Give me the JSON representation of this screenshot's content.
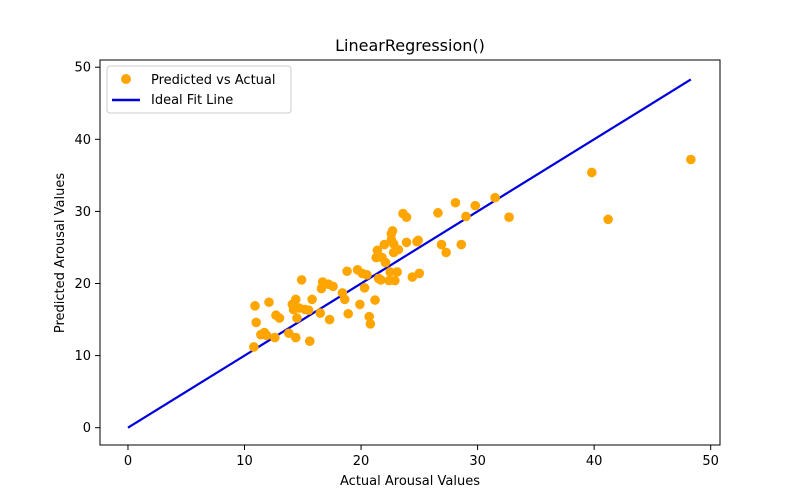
{
  "chart_data": {
    "type": "scatter",
    "title": "LinearRegression()",
    "xlabel": "Actual Arousal Values",
    "ylabel": "Predicted Arousal Values",
    "xlim": [
      -2.4,
      50.8
    ],
    "ylim": [
      -2.4,
      51.0
    ],
    "xticks": [
      0,
      10,
      20,
      30,
      40,
      50
    ],
    "yticks": [
      0,
      10,
      20,
      30,
      40,
      50
    ],
    "grid": false,
    "legend_placement": "top-left",
    "colors": {
      "scatter": "#ffa500",
      "line": "#0000dd",
      "axis": "#000000"
    },
    "series": [
      {
        "name": "Predicted vs Actual",
        "kind": "scatter",
        "points": [
          [
            10.8,
            11.2
          ],
          [
            10.9,
            16.9
          ],
          [
            11.0,
            14.6
          ],
          [
            11.4,
            12.9
          ],
          [
            11.7,
            13.2
          ],
          [
            11.9,
            12.8
          ],
          [
            12.1,
            17.4
          ],
          [
            12.6,
            12.5
          ],
          [
            12.7,
            15.6
          ],
          [
            13.0,
            15.2
          ],
          [
            13.8,
            13.1
          ],
          [
            14.1,
            17.1
          ],
          [
            14.2,
            16.4
          ],
          [
            14.4,
            12.5
          ],
          [
            14.4,
            17.8
          ],
          [
            14.5,
            15.2
          ],
          [
            14.7,
            16.6
          ],
          [
            14.9,
            20.5
          ],
          [
            15.2,
            16.4
          ],
          [
            15.5,
            16.3
          ],
          [
            15.6,
            12.0
          ],
          [
            15.8,
            17.8
          ],
          [
            16.5,
            15.9
          ],
          [
            16.6,
            19.3
          ],
          [
            16.7,
            20.2
          ],
          [
            17.2,
            19.9
          ],
          [
            17.3,
            15.0
          ],
          [
            17.6,
            19.6
          ],
          [
            18.4,
            18.7
          ],
          [
            18.6,
            17.8
          ],
          [
            18.8,
            21.7
          ],
          [
            18.9,
            15.8
          ],
          [
            19.7,
            21.9
          ],
          [
            19.9,
            17.1
          ],
          [
            20.1,
            21.4
          ],
          [
            20.3,
            19.4
          ],
          [
            20.5,
            21.2
          ],
          [
            20.7,
            15.4
          ],
          [
            20.8,
            14.4
          ],
          [
            21.2,
            17.7
          ],
          [
            21.3,
            23.6
          ],
          [
            21.4,
            24.6
          ],
          [
            21.5,
            20.7
          ],
          [
            21.7,
            20.5
          ],
          [
            21.8,
            23.6
          ],
          [
            22.0,
            25.4
          ],
          [
            22.1,
            22.9
          ],
          [
            22.4,
            20.4
          ],
          [
            22.5,
            21.6
          ],
          [
            22.6,
            26.1
          ],
          [
            22.6,
            26.9
          ],
          [
            22.7,
            27.3
          ],
          [
            22.8,
            25.5
          ],
          [
            22.8,
            24.3
          ],
          [
            22.9,
            20.4
          ],
          [
            23.1,
            21.6
          ],
          [
            23.2,
            24.7
          ],
          [
            23.6,
            29.7
          ],
          [
            23.9,
            29.2
          ],
          [
            23.9,
            25.7
          ],
          [
            24.4,
            20.9
          ],
          [
            24.8,
            25.8
          ],
          [
            24.9,
            26.0
          ],
          [
            25.0,
            21.4
          ],
          [
            26.6,
            29.8
          ],
          [
            26.9,
            25.4
          ],
          [
            27.3,
            24.3
          ],
          [
            28.1,
            31.2
          ],
          [
            28.6,
            25.4
          ],
          [
            29.0,
            29.3
          ],
          [
            29.8,
            30.8
          ],
          [
            31.5,
            31.9
          ],
          [
            32.7,
            29.2
          ],
          [
            39.8,
            35.4
          ],
          [
            41.2,
            28.9
          ],
          [
            48.3,
            37.2
          ]
        ]
      },
      {
        "name": "Ideal Fit Line",
        "kind": "line",
        "points": [
          [
            0,
            0
          ],
          [
            48.3,
            48.3
          ]
        ]
      }
    ]
  }
}
